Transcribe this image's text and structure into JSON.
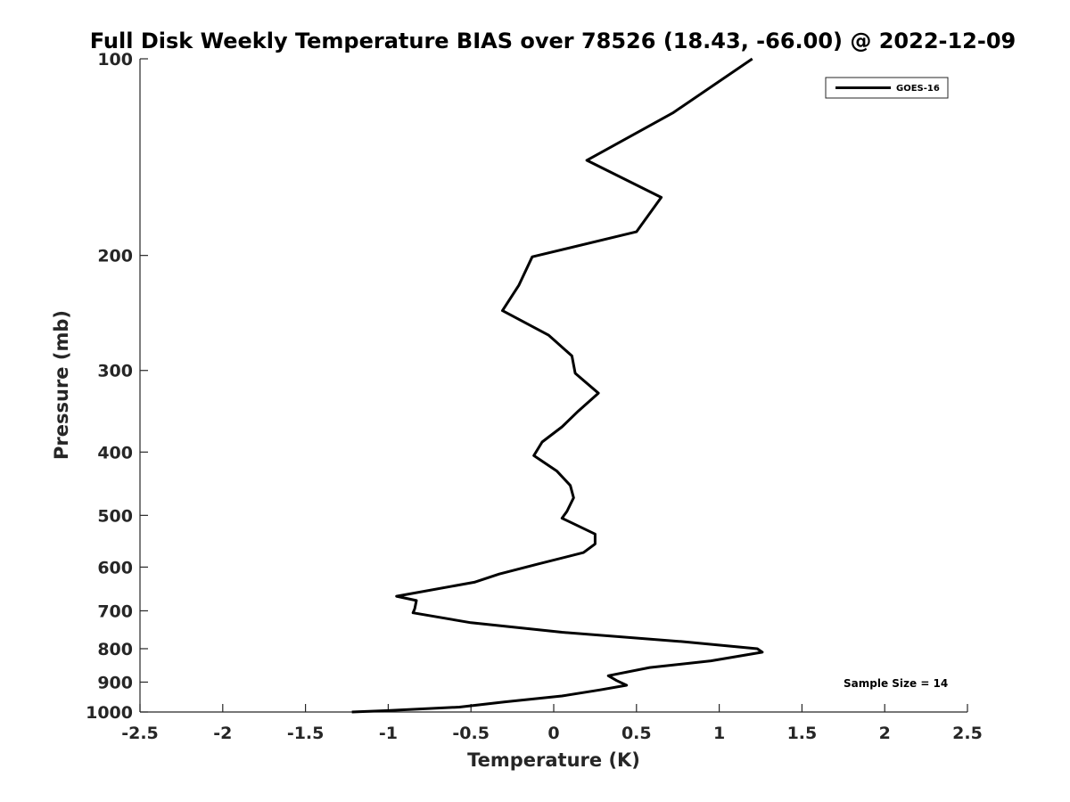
{
  "chart_data": {
    "type": "line",
    "title": "Full Disk Weekly Temperature BIAS over 78526 (18.43, -66.00) @ 2022-12-09",
    "xlabel": "Temperature (K)",
    "ylabel": "Pressure (mb)",
    "xlim": [
      -2.5,
      2.5
    ],
    "ylim": [
      100,
      1000
    ],
    "y_scale": "log",
    "y_reversed": true,
    "x_ticks": [
      -2.5,
      -2,
      -1.5,
      -1,
      -0.5,
      0,
      0.5,
      1,
      1.5,
      2,
      2.5
    ],
    "x_tick_labels": [
      "-2.5",
      "-2",
      "-1.5",
      "-1",
      "-0.5",
      "0",
      "0.5",
      "1",
      "1.5",
      "2",
      "2.5"
    ],
    "y_ticks": [
      100,
      200,
      300,
      400,
      500,
      600,
      700,
      800,
      900,
      1000
    ],
    "y_tick_labels": [
      "100",
      "200",
      "300",
      "400",
      "500",
      "600",
      "700",
      "800",
      "900",
      "1000"
    ],
    "grid": false,
    "legend_position": "top-right",
    "series": [
      {
        "name": "GOES-16",
        "color": "#000000",
        "points": [
          {
            "x": 1.2,
            "y": 100
          },
          {
            "x": 0.72,
            "y": 121
          },
          {
            "x": 0.2,
            "y": 143
          },
          {
            "x": 0.65,
            "y": 163
          },
          {
            "x": 0.5,
            "y": 184
          },
          {
            "x": -0.13,
            "y": 201
          },
          {
            "x": -0.21,
            "y": 222
          },
          {
            "x": -0.31,
            "y": 243
          },
          {
            "x": -0.03,
            "y": 265
          },
          {
            "x": 0.11,
            "y": 285
          },
          {
            "x": 0.13,
            "y": 303
          },
          {
            "x": 0.27,
            "y": 325
          },
          {
            "x": 0.15,
            "y": 346
          },
          {
            "x": 0.05,
            "y": 366
          },
          {
            "x": -0.07,
            "y": 386
          },
          {
            "x": -0.12,
            "y": 405
          },
          {
            "x": 0.02,
            "y": 428
          },
          {
            "x": 0.1,
            "y": 450
          },
          {
            "x": 0.12,
            "y": 470
          },
          {
            "x": 0.08,
            "y": 493
          },
          {
            "x": 0.05,
            "y": 505
          },
          {
            "x": 0.25,
            "y": 534
          },
          {
            "x": 0.25,
            "y": 553
          },
          {
            "x": 0.18,
            "y": 570
          },
          {
            "x": -0.1,
            "y": 594
          },
          {
            "x": -0.33,
            "y": 615
          },
          {
            "x": -0.48,
            "y": 633
          },
          {
            "x": -0.95,
            "y": 665
          },
          {
            "x": -0.83,
            "y": 675
          },
          {
            "x": -0.84,
            "y": 695
          },
          {
            "x": -0.85,
            "y": 705
          },
          {
            "x": -0.5,
            "y": 730
          },
          {
            "x": 0.05,
            "y": 755
          },
          {
            "x": 0.77,
            "y": 780
          },
          {
            "x": 1.23,
            "y": 800
          },
          {
            "x": 1.26,
            "y": 810
          },
          {
            "x": 0.95,
            "y": 835
          },
          {
            "x": 0.58,
            "y": 855
          },
          {
            "x": 0.33,
            "y": 880
          },
          {
            "x": 0.38,
            "y": 895
          },
          {
            "x": 0.44,
            "y": 910
          },
          {
            "x": 0.28,
            "y": 925
          },
          {
            "x": 0.05,
            "y": 945
          },
          {
            "x": -0.3,
            "y": 965
          },
          {
            "x": -0.57,
            "y": 983
          },
          {
            "x": -1.0,
            "y": 995
          },
          {
            "x": -1.22,
            "y": 1000
          }
        ]
      }
    ],
    "annotations": [
      "Sample Size = 14"
    ]
  }
}
